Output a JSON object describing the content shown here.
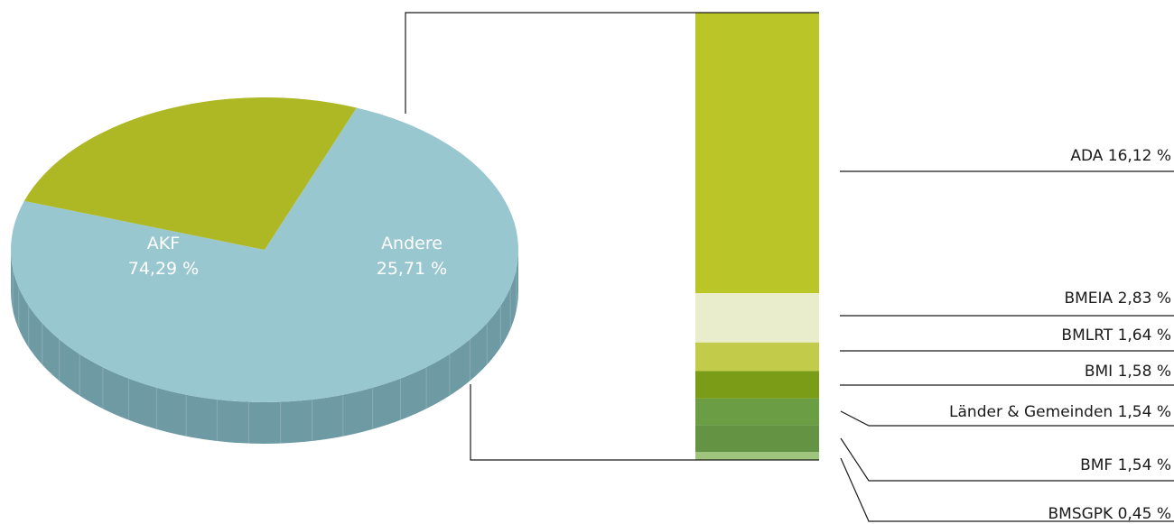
{
  "chart_data": [
    {
      "type": "pie",
      "slices": [
        {
          "label": "AKF",
          "value_text": "74,29 %",
          "value": 74.29,
          "color": "#99c7d0",
          "side_color": "#6e9aa4"
        },
        {
          "label": "Andere",
          "value_text": "25,71 %",
          "value": 25.71,
          "color": "#aeb825",
          "side_color": "#8a9319"
        }
      ]
    },
    {
      "type": "bar",
      "stacked": true,
      "series": [
        {
          "name": "ADA",
          "value_text": "16,12 %",
          "value": 16.12,
          "color": "#bac527"
        },
        {
          "name": "BMEIA",
          "value_text": "2,83 %",
          "value": 2.83,
          "color": "#eaedcb"
        },
        {
          "name": "BMLRT",
          "value_text": "1,64 %",
          "value": 1.64,
          "color": "#c2cb4a"
        },
        {
          "name": "BMI",
          "value_text": "1,58 %",
          "value": 1.58,
          "color": "#7b9c16"
        },
        {
          "name": "Länder & Gemeinden",
          "value_text": "1,54 %",
          "value": 1.54,
          "color": "#6b9e44"
        },
        {
          "name": "BMF",
          "value_text": "1,54 %",
          "value": 1.54,
          "color": "#649343"
        },
        {
          "name": "BMSGPK",
          "value_text": "0,45 %",
          "value": 0.45,
          "color": "#9fc47b"
        }
      ]
    }
  ],
  "labels": {
    "akf_name": "AKF",
    "akf_value": "74,29 %",
    "andere_name": "Andere",
    "andere_value": "25,71 %",
    "bar": [
      "ADA 16,12 %",
      "BMEIA 2,83 %",
      "BMLRT 1,64 %",
      "BMI 1,58 %",
      "Länder & Gemeinden 1,54 %",
      "BMF 1,54 %",
      "BMSGPK 0,45 %"
    ]
  }
}
